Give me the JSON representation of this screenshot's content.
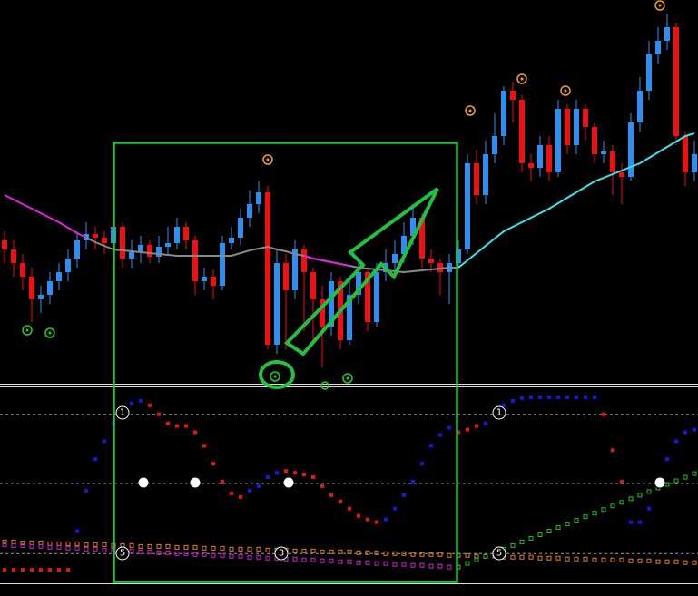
{
  "chart_data": [
    {
      "type": "candlestick",
      "ylim": [
        0,
        425
      ],
      "up_color": "#2f8ff0",
      "down_color": "#ee1111",
      "values": [
        [
          160,
          170,
          135,
          150
        ],
        [
          150,
          160,
          120,
          135
        ],
        [
          135,
          145,
          105,
          120
        ],
        [
          120,
          130,
          70,
          95
        ],
        [
          95,
          110,
          80,
          100
        ],
        [
          100,
          125,
          90,
          115
        ],
        [
          115,
          135,
          105,
          125
        ],
        [
          125,
          150,
          115,
          140
        ],
        [
          140,
          170,
          130,
          160
        ],
        [
          160,
          180,
          150,
          167
        ],
        [
          167,
          175,
          150,
          163
        ],
        [
          163,
          170,
          145,
          157
        ],
        [
          157,
          185,
          125,
          175
        ],
        [
          175,
          180,
          130,
          140
        ],
        [
          140,
          160,
          130,
          147
        ],
        [
          147,
          165,
          135,
          155
        ],
        [
          155,
          160,
          135,
          142
        ],
        [
          142,
          165,
          135,
          153
        ],
        [
          153,
          175,
          145,
          157
        ],
        [
          157,
          185,
          150,
          175
        ],
        [
          175,
          180,
          150,
          160
        ],
        [
          160,
          165,
          100,
          115
        ],
        [
          115,
          130,
          105,
          120
        ],
        [
          120,
          128,
          95,
          110
        ],
        [
          110,
          165,
          105,
          157
        ],
        [
          157,
          175,
          150,
          163
        ],
        [
          163,
          195,
          155,
          185
        ],
        [
          185,
          215,
          175,
          200
        ],
        [
          200,
          225,
          190,
          213
        ],
        [
          213,
          220,
          40,
          45
        ],
        [
          45,
          150,
          35,
          135
        ],
        [
          135,
          145,
          40,
          105
        ],
        [
          105,
          160,
          95,
          150
        ],
        [
          150,
          155,
          60,
          125
        ],
        [
          125,
          130,
          50,
          95
        ],
        [
          95,
          110,
          20,
          65
        ],
        [
          65,
          125,
          55,
          115
        ],
        [
          115,
          120,
          40,
          50
        ],
        [
          50,
          115,
          45,
          100
        ],
        [
          100,
          140,
          90,
          125
        ],
        [
          125,
          130,
          60,
          70
        ],
        [
          70,
          135,
          65,
          125
        ],
        [
          125,
          150,
          115,
          135
        ],
        [
          135,
          160,
          125,
          145
        ],
        [
          145,
          180,
          135,
          165
        ],
        [
          165,
          200,
          155,
          185
        ],
        [
          185,
          190,
          130,
          140
        ],
        [
          140,
          150,
          125,
          135
        ],
        [
          135,
          140,
          100,
          125
        ],
        [
          125,
          145,
          90,
          135
        ],
        [
          135,
          160,
          130,
          150
        ],
        [
          150,
          255,
          145,
          245
        ],
        [
          245,
          260,
          200,
          210
        ],
        [
          210,
          270,
          200,
          255
        ],
        [
          255,
          300,
          245,
          275
        ],
        [
          275,
          330,
          265,
          325
        ],
        [
          325,
          335,
          290,
          315
        ],
        [
          315,
          320,
          235,
          245
        ],
        [
          245,
          255,
          225,
          240
        ],
        [
          240,
          275,
          230,
          265
        ],
        [
          265,
          275,
          225,
          235
        ],
        [
          235,
          315,
          230,
          305
        ],
        [
          305,
          310,
          255,
          265
        ],
        [
          265,
          315,
          255,
          305
        ],
        [
          305,
          310,
          270,
          285
        ],
        [
          285,
          290,
          245,
          255
        ],
        [
          255,
          270,
          245,
          258
        ],
        [
          258,
          265,
          210,
          235
        ],
        [
          235,
          245,
          200,
          230
        ],
        [
          230,
          300,
          225,
          290
        ],
        [
          290,
          340,
          280,
          325
        ],
        [
          325,
          380,
          315,
          365
        ],
        [
          365,
          395,
          355,
          380
        ],
        [
          380,
          410,
          370,
          395
        ],
        [
          395,
          400,
          265,
          275
        ],
        [
          275,
          280,
          220,
          235
        ],
        [
          235,
          270,
          225,
          255
        ]
      ],
      "series": [
        {
          "color": "#888888",
          "values": [
            null,
            null,
            null,
            null,
            null,
            null,
            null,
            null,
            null,
            163,
            158,
            154,
            150,
            149,
            148,
            147,
            146,
            145,
            144,
            143,
            143,
            143,
            143,
            143,
            143,
            143,
            146,
            149,
            151,
            153,
            150,
            148,
            145,
            143,
            140,
            138,
            136,
            134,
            132,
            130,
            129,
            128,
            127,
            126,
            125,
            126,
            127,
            128,
            129,
            130,
            130,
            null,
            null,
            null,
            null,
            null,
            null,
            null,
            null,
            null,
            null,
            null,
            null,
            null,
            null,
            null,
            null,
            null,
            null,
            null,
            null,
            null,
            null,
            null,
            null,
            null,
            null
          ]
        },
        {
          "color": "#e020e0",
          "values": [
            210,
            205,
            200,
            195,
            190,
            185,
            180,
            174,
            168,
            163,
            null,
            null,
            null,
            null,
            null,
            null,
            null,
            null,
            null,
            null,
            null,
            null,
            null,
            null,
            null,
            null,
            null,
            null,
            null,
            null,
            null,
            null,
            null,
            143,
            140,
            138,
            136,
            134,
            132,
            null,
            null,
            null,
            null,
            null,
            null,
            null,
            null,
            null,
            null,
            null,
            null,
            null,
            null,
            null,
            null,
            null,
            null,
            null,
            null,
            null,
            null,
            null,
            null,
            null,
            null,
            null,
            null,
            null,
            null,
            null,
            null,
            null,
            null,
            null,
            null,
            null,
            null
          ]
        },
        {
          "color": "#30e8f0",
          "values": [
            null,
            null,
            null,
            null,
            null,
            null,
            null,
            null,
            null,
            null,
            null,
            null,
            null,
            null,
            null,
            null,
            null,
            null,
            null,
            null,
            null,
            null,
            null,
            null,
            null,
            null,
            null,
            null,
            null,
            null,
            null,
            null,
            null,
            null,
            null,
            null,
            null,
            null,
            null,
            null,
            null,
            null,
            null,
            null,
            null,
            null,
            null,
            null,
            null,
            null,
            130,
            138,
            146,
            154,
            162,
            170,
            175,
            180,
            185,
            190,
            195,
            201,
            207,
            213,
            219,
            225,
            229,
            233,
            237,
            241,
            245,
            251,
            257,
            263,
            269,
            275,
            278
          ]
        }
      ]
    },
    {
      "type": "dots",
      "ylim": [
        0,
        215
      ],
      "levels": [
        185,
        108,
        30
      ],
      "annotations": [
        "1",
        "1",
        "5",
        "5",
        "3"
      ],
      "series": [
        {
          "color": "#ee1111",
          "style": "filled",
          "values": [
            12,
            12,
            12,
            12,
            12,
            12,
            12,
            12,
            null,
            null,
            null,
            null,
            null,
            null,
            null,
            null,
            195,
            185,
            175,
            172,
            172,
            165,
            150,
            130,
            110,
            97,
            93,
            null,
            null,
            null,
            null,
            122,
            120,
            118,
            115,
            105,
            95,
            88,
            80,
            72,
            68,
            65,
            null,
            null,
            null,
            null,
            null,
            null,
            null,
            null,
            165,
            168,
            172,
            null,
            null,
            null,
            null,
            null,
            null,
            null,
            null,
            null,
            null,
            null,
            null,
            null,
            185,
            145,
            110,
            null,
            null,
            null,
            null,
            null,
            null,
            null,
            null
          ]
        },
        {
          "color": "#1515ee",
          "style": "filled",
          "values": [
            null,
            null,
            null,
            null,
            null,
            null,
            null,
            null,
            55,
            100,
            135,
            155,
            175,
            190,
            197,
            200,
            null,
            null,
            null,
            null,
            null,
            null,
            null,
            null,
            null,
            null,
            null,
            100,
            105,
            115,
            120,
            null,
            null,
            null,
            null,
            null,
            null,
            null,
            null,
            null,
            null,
            null,
            68,
            80,
            95,
            110,
            130,
            150,
            162,
            170,
            null,
            null,
            null,
            175,
            185,
            195,
            200,
            203,
            204,
            204,
            204,
            204,
            204,
            204,
            204,
            204,
            null,
            null,
            null,
            65,
            65,
            80,
            110,
            135,
            155,
            165,
            168
          ]
        },
        {
          "color": "#e08020",
          "style": "hollow",
          "values": [
            43,
            43,
            42,
            42,
            42,
            41,
            41,
            41,
            41,
            40,
            40,
            40,
            39,
            39,
            39,
            38,
            38,
            38,
            38,
            37,
            37,
            37,
            36,
            36,
            36,
            35,
            35,
            35,
            35,
            34,
            34,
            34,
            33,
            33,
            33,
            32,
            32,
            32,
            32,
            31,
            31,
            31,
            30,
            30,
            30,
            29,
            29,
            29,
            29,
            28,
            28,
            28,
            27,
            27,
            27,
            26,
            26,
            26,
            26,
            25,
            25,
            25,
            24,
            24,
            24,
            23,
            23,
            23,
            23,
            22,
            22,
            22,
            21,
            21,
            21,
            20,
            20
          ]
        },
        {
          "color": "#d020d0",
          "style": "hollow",
          "values": [
            40,
            39,
            39,
            38,
            38,
            37,
            37,
            36,
            36,
            35,
            35,
            34,
            34,
            33,
            33,
            32,
            32,
            31,
            31,
            30,
            30,
            29,
            29,
            28,
            28,
            27,
            27,
            26,
            26,
            25,
            25,
            24,
            24,
            23,
            23,
            22,
            22,
            21,
            21,
            20,
            20,
            19,
            19,
            18,
            18,
            17,
            17,
            16,
            16,
            15,
            15,
            null,
            null,
            null,
            null,
            null,
            null,
            null,
            null,
            null,
            null,
            null,
            null,
            null,
            null,
            null,
            null,
            null,
            null,
            null,
            null,
            null,
            null,
            null,
            null,
            null,
            null
          ]
        },
        {
          "color": "#20c020",
          "style": "hollow",
          "values": [
            null,
            null,
            null,
            null,
            null,
            null,
            null,
            null,
            null,
            null,
            null,
            null,
            null,
            null,
            null,
            null,
            null,
            null,
            null,
            null,
            null,
            null,
            null,
            null,
            null,
            null,
            null,
            null,
            null,
            null,
            null,
            null,
            null,
            null,
            null,
            null,
            null,
            null,
            null,
            null,
            null,
            null,
            null,
            null,
            null,
            null,
            null,
            null,
            null,
            null,
            15,
            19,
            23,
            27,
            31,
            35,
            39,
            43,
            47,
            51,
            55,
            59,
            63,
            67,
            71,
            75,
            79,
            83,
            87,
            91,
            95,
            99,
            103,
            107,
            111,
            115,
            119
          ]
        }
      ]
    }
  ]
}
